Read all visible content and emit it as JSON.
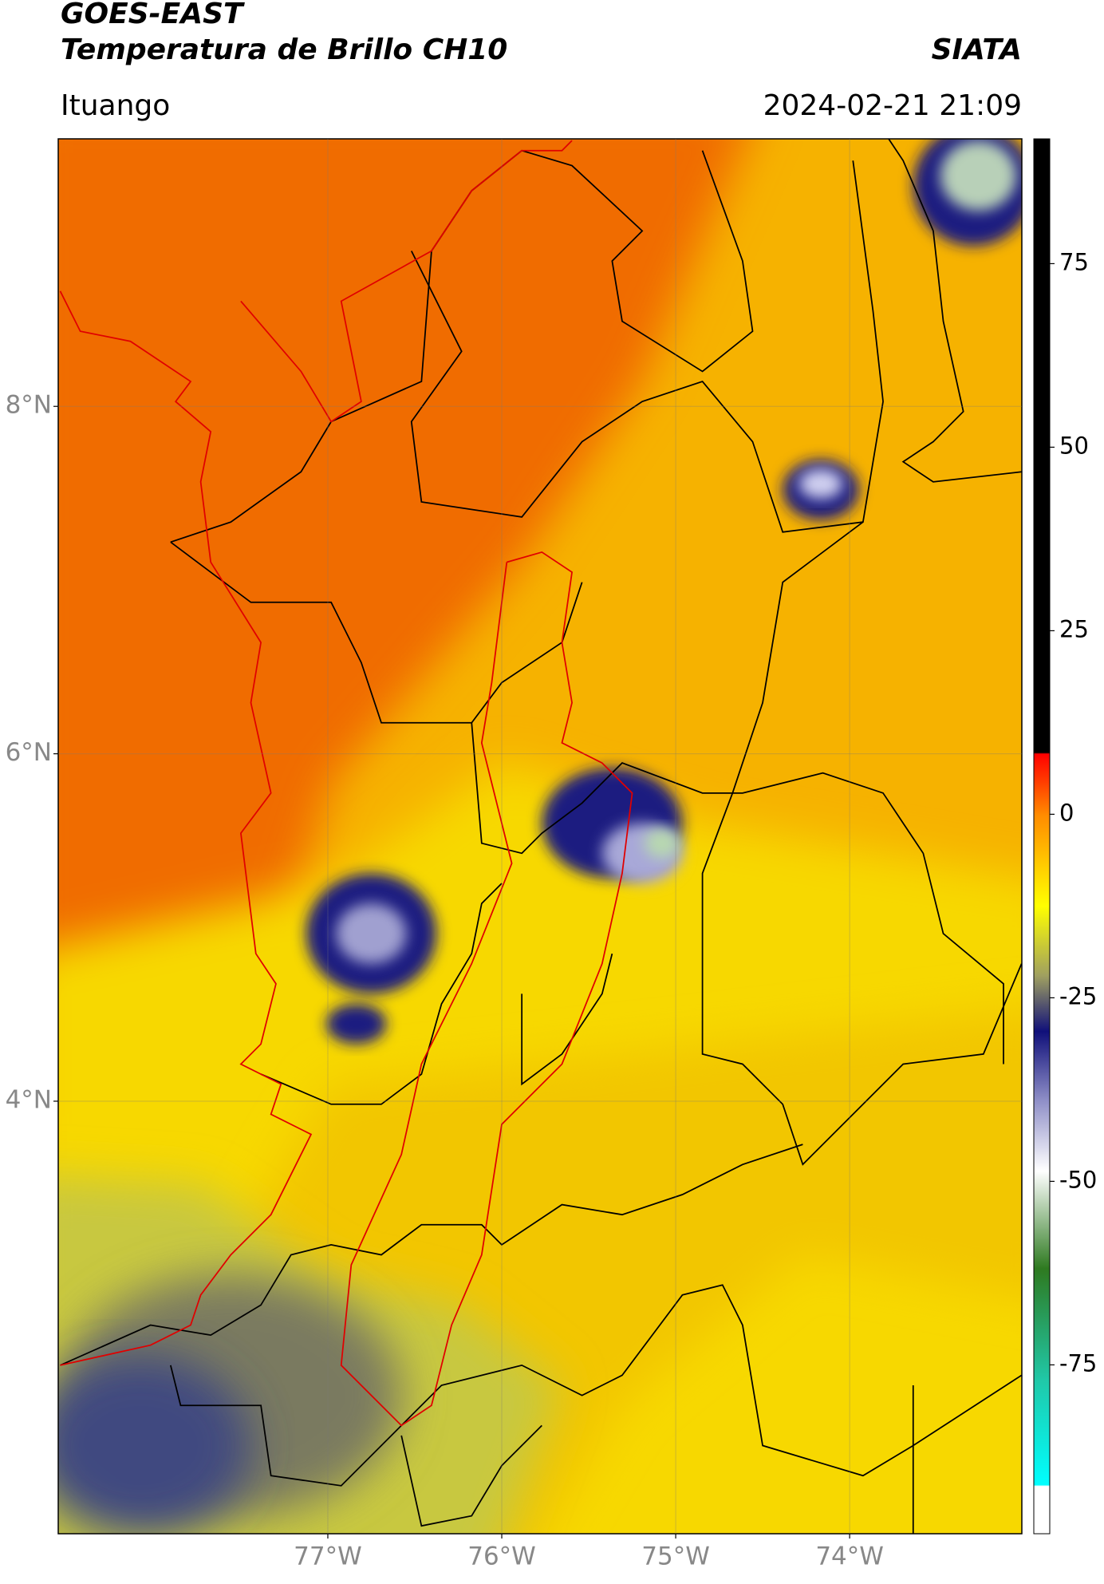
{
  "header": {
    "title": "GOES-EAST",
    "subtitle": "Temperatura de Brillo CH10",
    "source": "SIATA",
    "location": "Ituango",
    "datetime": "2024-02-21 21:09"
  },
  "map": {
    "lat_range": [
      1.51,
      9.54
    ],
    "lon_range": [
      -78.55,
      -73.01
    ],
    "lat_ticks": [
      {
        "value": 8,
        "label": "8°N"
      },
      {
        "value": 6,
        "label": "6°N"
      },
      {
        "value": 4,
        "label": "4°N"
      }
    ],
    "lon_ticks": [
      {
        "value": -77,
        "label": "77°W"
      },
      {
        "value": -76,
        "label": "76°W"
      },
      {
        "value": -75,
        "label": "75°W"
      },
      {
        "value": -74,
        "label": "74°W"
      }
    ]
  },
  "colorbar": {
    "range": [
      -98,
      92
    ],
    "ticks": [
      75,
      50,
      25,
      0,
      -25,
      -50,
      -75
    ]
  }
}
